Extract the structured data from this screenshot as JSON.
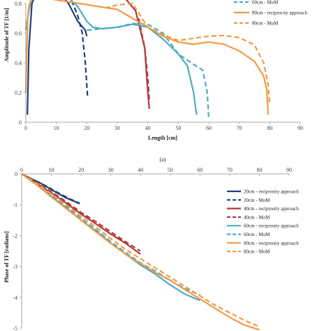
{
  "chart_data": [
    {
      "type": "line",
      "caption": "(a)",
      "xlabel": "Length [cm]",
      "ylabel": "Amplitude of TF [1/m]",
      "xlim": [
        0,
        90
      ],
      "ylim": [
        0,
        0.8
      ],
      "xticks": [
        0,
        10,
        20,
        30,
        40,
        50,
        60,
        70,
        80,
        90
      ],
      "yticks": [
        0,
        0.2,
        0.4,
        0.6,
        0.8
      ],
      "legend_position": "top-right",
      "legend_entries": [
        "60cm - MoM",
        "80cm - reciprocity approach",
        "80cm - MoM"
      ],
      "series": [
        {
          "key": "20r",
          "color": "#1f3f78",
          "dash": false,
          "x": [
            0.5,
            1,
            2,
            5,
            10,
            14,
            17,
            19.5,
            20
          ],
          "y": [
            0.05,
            0.5,
            0.8,
            0.95,
            0.9,
            0.8,
            0.68,
            0.62,
            0.58
          ]
        },
        {
          "key": "20m",
          "color": "#1f3f78",
          "dash": true,
          "x": [
            15,
            17,
            18.5,
            19.5,
            20,
            20.3
          ],
          "y": [
            0.82,
            0.72,
            0.6,
            0.4,
            0.25,
            0.16
          ]
        },
        {
          "key": "40r",
          "color": "#b03a3a",
          "dash": false,
          "x": [
            32,
            36,
            39,
            40,
            40.5
          ],
          "y": [
            0.85,
            0.75,
            0.5,
            0.2,
            0.09
          ]
        },
        {
          "key": "40m",
          "color": "#b03a3a",
          "dash": true,
          "x": [
            37,
            39,
            40,
            40.5
          ],
          "y": [
            0.7,
            0.5,
            0.3,
            0.15
          ]
        },
        {
          "key": "60r",
          "color": "#4aacc5",
          "dash": false,
          "x": [
            0,
            0.6,
            1,
            2,
            8,
            13,
            17,
            20,
            22,
            25,
            30,
            35,
            40,
            45,
            50,
            53,
            55,
            56
          ],
          "y": [
            0.62,
            0.7,
            0.75,
            0.85,
            0.93,
            0.86,
            0.78,
            0.68,
            0.64,
            0.63,
            0.64,
            0.66,
            0.64,
            0.56,
            0.46,
            0.38,
            0.2,
            0.05
          ]
        },
        {
          "key": "60m",
          "color": "#4aacc5",
          "dash": true,
          "x": [
            20,
            25,
            30,
            35,
            40,
            45,
            50,
            55,
            58,
            59.5,
            60
          ],
          "y": [
            0.62,
            0.63,
            0.64,
            0.665,
            0.66,
            0.6,
            0.46,
            0.39,
            0.35,
            0.2,
            0.02
          ]
        },
        {
          "key": "80r",
          "color": "#f19a45",
          "dash": false,
          "x": [
            0,
            0.6,
            1,
            2,
            30,
            40,
            45,
            50,
            55,
            60,
            65,
            70,
            75,
            78,
            79,
            79.5
          ],
          "y": [
            0.2,
            0.7,
            0.78,
            0.85,
            0.76,
            0.64,
            0.58,
            0.54,
            0.525,
            0.54,
            0.525,
            0.48,
            0.41,
            0.31,
            0.22,
            0.05
          ]
        },
        {
          "key": "80m",
          "color": "#f19a45",
          "dash": true,
          "x": [
            26,
            30,
            35,
            40,
            45,
            50,
            55,
            60,
            65,
            70,
            75,
            78,
            79.5,
            80
          ],
          "y": [
            0.77,
            0.79,
            0.8,
            0.64,
            0.59,
            0.55,
            0.565,
            0.58,
            0.585,
            0.57,
            0.52,
            0.4,
            0.25,
            0.12
          ]
        }
      ]
    },
    {
      "type": "line",
      "xlabel": "",
      "ylabel": "Phase of TF [radians]",
      "xlim": [
        0,
        90
      ],
      "ylim": [
        -5,
        0
      ],
      "xticks": [
        0,
        10,
        20,
        30,
        40,
        50,
        60,
        70,
        80,
        90
      ],
      "yticks": [
        0,
        -1,
        -2,
        -3,
        -4,
        -5
      ],
      "legend_position": "right",
      "legend_entries": [
        {
          "label": "20cm - reciprosity approach",
          "color": "#1f3f78",
          "dash": false
        },
        {
          "label": "20cm - MoM",
          "color": "#1f3f78",
          "dash": true
        },
        {
          "label": "40cm - reciprosity approach",
          "color": "#b03a3a",
          "dash": false
        },
        {
          "label": "40cm - MoM",
          "color": "#b03a3a",
          "dash": true
        },
        {
          "label": "60cm - reciprosity approach",
          "color": "#4aacc5",
          "dash": false
        },
        {
          "label": "60cm - MoM",
          "color": "#4aacc5",
          "dash": true
        },
        {
          "label": "80cm - reciprosity approach",
          "color": "#f19a45",
          "dash": false
        },
        {
          "label": "80cm - MoM",
          "color": "#f19a45",
          "dash": true
        }
      ],
      "series": [
        {
          "key": "20r",
          "color": "#1f3f78",
          "dash": false,
          "x": [
            0,
            3,
            6,
            9,
            12,
            15,
            18,
            19.5
          ],
          "y": [
            0,
            -0.15,
            -0.28,
            -0.45,
            -0.62,
            -0.78,
            -0.9,
            -0.97
          ]
        },
        {
          "key": "20m",
          "color": "#1f3f78",
          "dash": true,
          "x": [
            0,
            4,
            8,
            12,
            16,
            19.5
          ],
          "y": [
            0,
            -0.2,
            -0.38,
            -0.6,
            -0.8,
            -0.95
          ]
        },
        {
          "key": "40r",
          "color": "#b03a3a",
          "dash": false,
          "x": [
            0,
            5,
            10,
            15,
            20,
            25,
            30,
            35,
            40
          ],
          "y": [
            0,
            -0.3,
            -0.62,
            -0.95,
            -1.3,
            -1.62,
            -1.95,
            -2.25,
            -2.6
          ]
        },
        {
          "key": "40m",
          "color": "#b03a3a",
          "dash": true,
          "x": [
            0,
            5,
            10,
            15,
            20,
            25,
            30,
            35,
            40
          ],
          "y": [
            0,
            -0.28,
            -0.58,
            -0.9,
            -1.25,
            -1.55,
            -1.88,
            -2.2,
            -2.5
          ]
        },
        {
          "key": "60r",
          "color": "#4aacc5",
          "dash": false,
          "x": [
            0,
            5,
            10,
            15,
            20,
            25,
            30,
            35,
            40,
            45,
            50,
            55,
            60
          ],
          "y": [
            0,
            -0.35,
            -0.72,
            -1.1,
            -1.5,
            -1.85,
            -2.25,
            -2.6,
            -2.95,
            -3.25,
            -3.6,
            -3.9,
            -4.1
          ]
        },
        {
          "key": "60m",
          "color": "#4aacc5",
          "dash": true,
          "x": [
            0,
            5,
            10,
            15,
            20,
            25,
            30,
            35,
            40,
            45,
            50,
            55,
            60
          ],
          "y": [
            0,
            -0.32,
            -0.68,
            -1.05,
            -1.45,
            -1.8,
            -2.2,
            -2.55,
            -2.88,
            -3.15,
            -3.45,
            -3.72,
            -3.92
          ]
        },
        {
          "key": "80r",
          "color": "#f19a45",
          "dash": false,
          "x": [
            0,
            5,
            10,
            15,
            20,
            25,
            30,
            35,
            40,
            45,
            50,
            55,
            60,
            65,
            70,
            75,
            80
          ],
          "y": [
            0,
            -0.35,
            -0.75,
            -1.12,
            -1.5,
            -1.88,
            -2.25,
            -2.6,
            -2.9,
            -3.2,
            -3.45,
            -3.75,
            -4.05,
            -4.35,
            -4.65,
            -4.9,
            -5.05
          ]
        },
        {
          "key": "80m",
          "color": "#f19a45",
          "dash": true,
          "x": [
            0,
            5,
            10,
            15,
            20,
            25,
            30,
            35,
            40,
            45,
            50,
            55,
            60,
            65,
            70,
            75,
            80
          ],
          "y": [
            0,
            -0.3,
            -0.65,
            -1.0,
            -1.38,
            -1.72,
            -2.1,
            -2.45,
            -2.75,
            -3.05,
            -3.35,
            -3.65,
            -3.95,
            -4.25,
            -4.5,
            -4.75,
            -4.95
          ]
        }
      ]
    }
  ]
}
